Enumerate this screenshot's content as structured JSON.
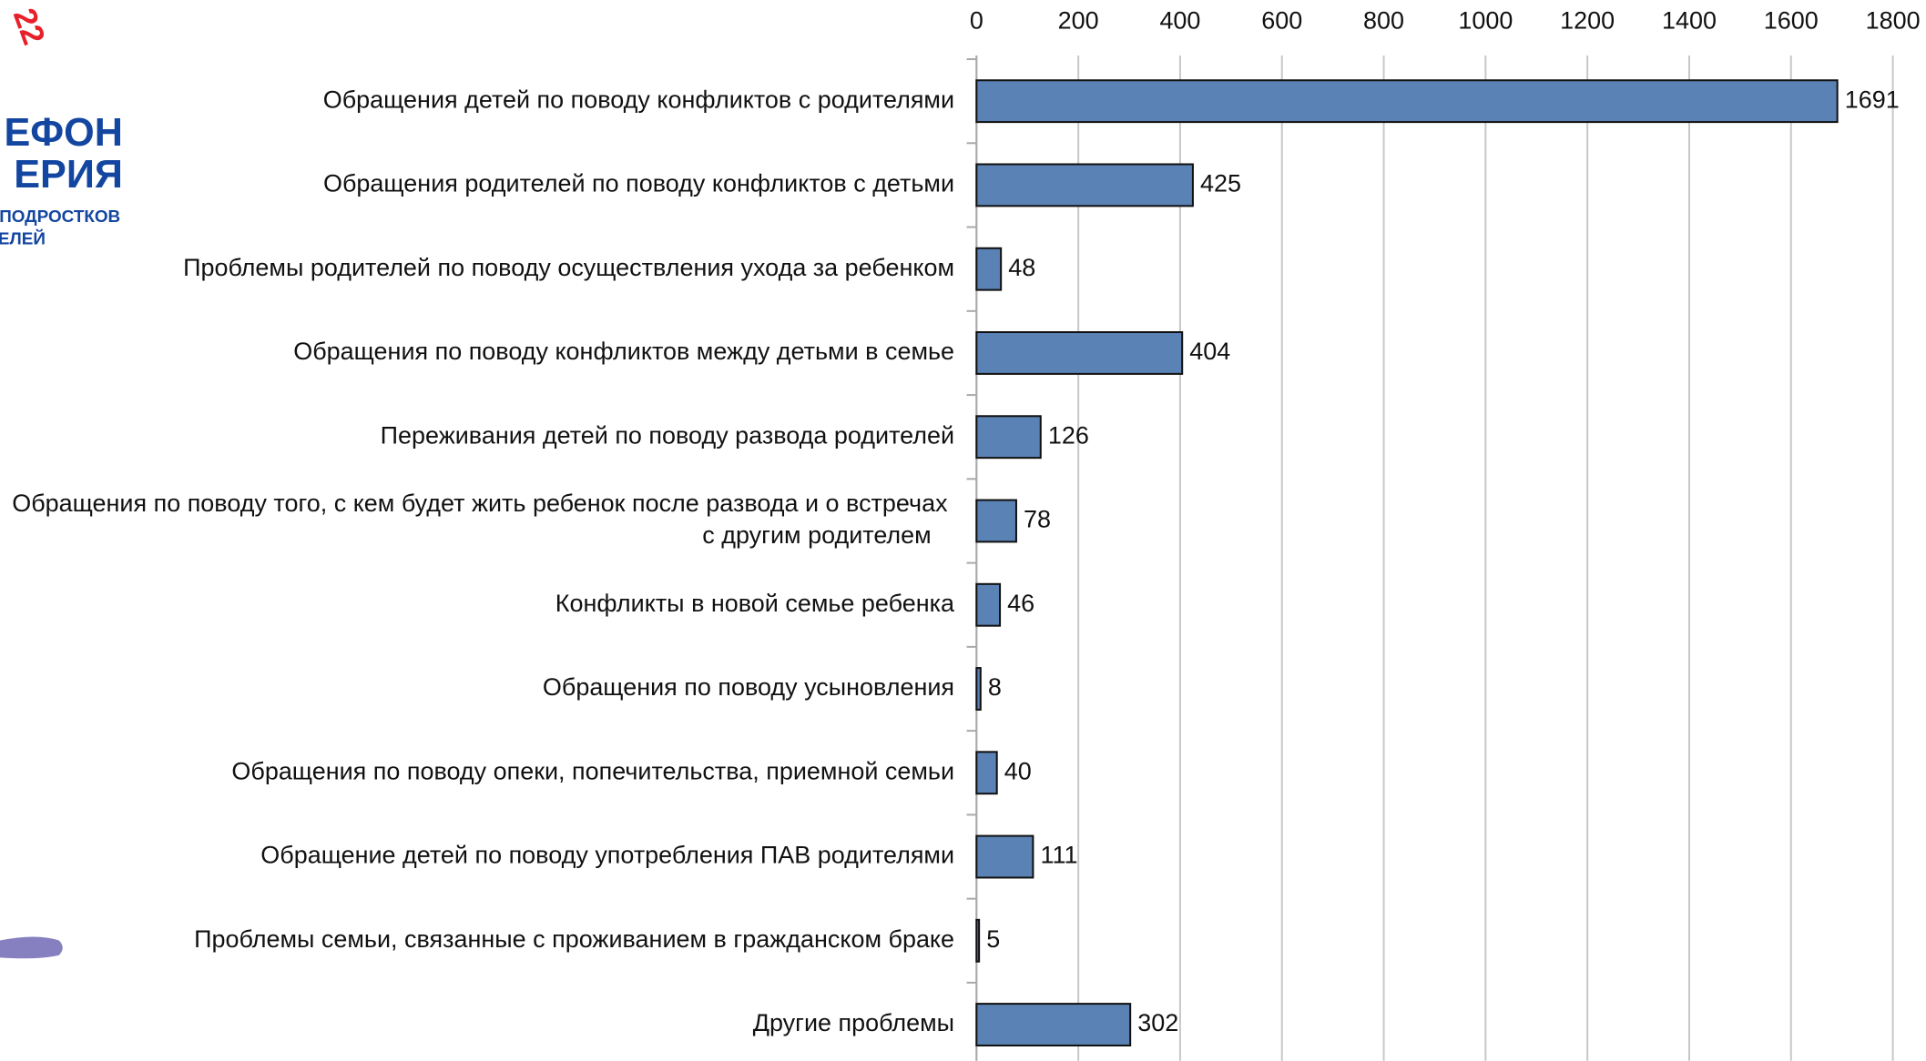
{
  "logo": {
    "lines": [
      "22",
      "ЕФОН",
      "ЕРИЯ",
      "ПОДРОСТКОВ",
      "ЕЛЕЙ"
    ]
  },
  "chart_data": {
    "type": "bar",
    "orientation": "horizontal",
    "categories": [
      "Обращения детей по поводу конфликтов с родителями",
      "Обращения родителей по поводу конфликтов с детьми",
      "Проблемы родителей по поводу осуществления ухода за ребенком",
      "Обращения по поводу конфликтов между детьми в семье",
      "Переживания детей по поводу развода родителей",
      "Обращения по поводу того, с кем будет жить ребенок после развода и о встречах с другим родителем",
      "Конфликты в новой семье ребенка",
      "Обращения по поводу усыновления",
      "Обращения по поводу опеки, попечительства, приемной семьи",
      "Обращение детей по поводу употребления ПАВ родителями",
      "Проблемы семьи, связанные с проживанием в гражданском браке",
      "Другие проблемы"
    ],
    "values": [
      1691,
      425,
      48,
      404,
      126,
      78,
      46,
      8,
      40,
      111,
      5,
      302
    ],
    "color": "#5a82b4",
    "xlim": [
      0,
      1800
    ],
    "xticks": [
      0,
      200,
      400,
      600,
      800,
      1000,
      1200,
      1400,
      1600,
      1800
    ],
    "grid": true
  }
}
